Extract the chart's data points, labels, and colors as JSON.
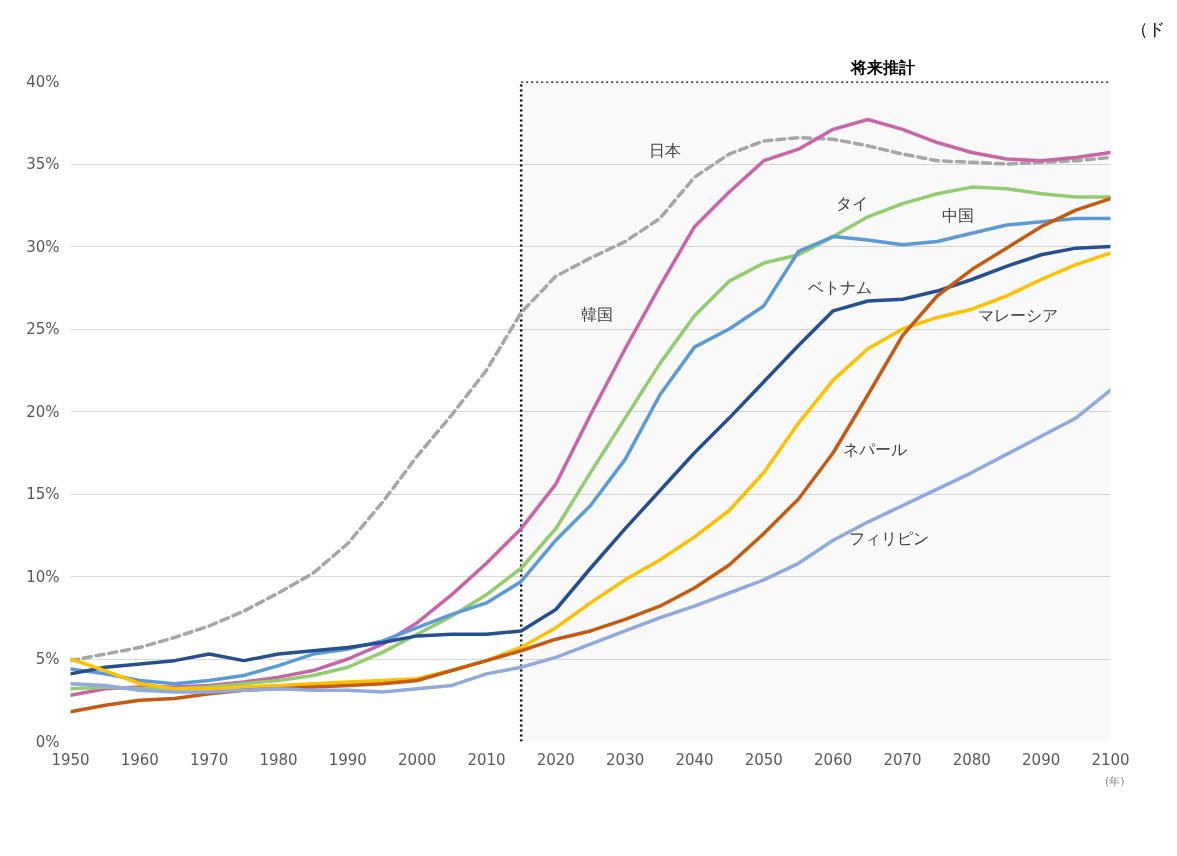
{
  "chart_data": {
    "type": "line",
    "x": [
      1950,
      1955,
      1960,
      1965,
      1970,
      1975,
      1980,
      1985,
      1990,
      1995,
      2000,
      2005,
      2010,
      2015,
      2020,
      2025,
      2030,
      2035,
      2040,
      2045,
      2050,
      2055,
      2060,
      2065,
      2070,
      2075,
      2080,
      2085,
      2090,
      2095,
      2100
    ],
    "xlabel": "(年)",
    "xlim": [
      1950,
      2100
    ],
    "xticks": [
      1950,
      1960,
      1970,
      1980,
      1990,
      2000,
      2010,
      2020,
      2030,
      2040,
      2050,
      2060,
      2070,
      2080,
      2090,
      2100
    ],
    "ylim": [
      0,
      40
    ],
    "yticks": [
      {
        "value": 0,
        "label": "0%"
      },
      {
        "value": 5,
        "label": "5%"
      },
      {
        "value": 10,
        "label": "10%"
      },
      {
        "value": 15,
        "label": "15%"
      },
      {
        "value": 20,
        "label": "20%"
      },
      {
        "value": 25,
        "label": "25%"
      },
      {
        "value": 30,
        "label": "30%"
      },
      {
        "value": 35,
        "label": "35%"
      },
      {
        "value": 40,
        "label": "40%"
      }
    ],
    "grid": "y",
    "marker": "none",
    "series": [
      {
        "name": "日本",
        "color": "#a6a6a6",
        "line_style": "dashed",
        "values": [
          4.9,
          5.3,
          5.7,
          6.3,
          7.0,
          7.9,
          9.0,
          10.2,
          12.0,
          14.5,
          17.3,
          19.8,
          22.5,
          26.0,
          28.2,
          29.3,
          30.3,
          31.7,
          34.2,
          35.6,
          36.4,
          36.6,
          36.5,
          36.1,
          35.6,
          35.2,
          35.1,
          35.0,
          35.1,
          35.2,
          35.4
        ]
      },
      {
        "name": "韓国",
        "color": "#c964a8",
        "values": [
          2.8,
          3.2,
          3.3,
          3.3,
          3.4,
          3.6,
          3.9,
          4.3,
          5.0,
          5.9,
          7.2,
          8.9,
          10.8,
          12.9,
          15.6,
          19.8,
          23.8,
          27.6,
          31.2,
          33.3,
          35.2,
          35.9,
          37.1,
          37.7,
          37.1,
          36.3,
          35.7,
          35.3,
          35.2,
          35.4,
          35.7
        ]
      },
      {
        "name": "タイ",
        "color": "#92cc6e",
        "values": [
          3.2,
          3.3,
          3.2,
          3.2,
          3.3,
          3.5,
          3.7,
          4.0,
          4.5,
          5.4,
          6.5,
          7.6,
          8.9,
          10.5,
          12.9,
          16.3,
          19.6,
          22.9,
          25.8,
          27.9,
          29.0,
          29.5,
          30.6,
          31.8,
          32.6,
          33.2,
          33.6,
          33.5,
          33.2,
          33.0,
          33.0
        ]
      },
      {
        "name": "中国",
        "color": "#5b9bd5",
        "values": [
          4.4,
          4.1,
          3.7,
          3.5,
          3.7,
          4.0,
          4.6,
          5.3,
          5.6,
          6.1,
          6.9,
          7.7,
          8.4,
          9.7,
          12.2,
          14.3,
          17.1,
          21.0,
          23.9,
          25.0,
          26.4,
          29.7,
          30.6,
          30.4,
          30.1,
          30.3,
          30.8,
          31.3,
          31.5,
          31.7,
          31.7
        ]
      },
      {
        "name": "ベトナム",
        "color": "#264f8f",
        "values": [
          4.1,
          4.5,
          4.7,
          4.9,
          5.3,
          4.9,
          5.3,
          5.5,
          5.7,
          6.0,
          6.4,
          6.5,
          6.5,
          6.7,
          8.0,
          10.5,
          12.9,
          15.2,
          17.5,
          19.6,
          21.8,
          24.0,
          26.1,
          26.7,
          26.8,
          27.3,
          28.0,
          28.8,
          29.5,
          29.9,
          30.0
        ]
      },
      {
        "name": "マレーシア",
        "color": "#ffc000",
        "values": [
          5.0,
          4.3,
          3.5,
          3.2,
          3.2,
          3.3,
          3.4,
          3.5,
          3.6,
          3.7,
          3.8,
          4.3,
          4.9,
          5.7,
          6.9,
          8.4,
          9.8,
          11.0,
          12.4,
          14.0,
          16.3,
          19.3,
          21.9,
          23.8,
          25.0,
          25.7,
          26.2,
          27.0,
          28.0,
          28.9,
          29.6
        ]
      },
      {
        "name": "ネパール",
        "color": "#c55a11",
        "values": [
          1.8,
          2.2,
          2.5,
          2.6,
          2.9,
          3.1,
          3.2,
          3.3,
          3.4,
          3.5,
          3.7,
          4.3,
          4.9,
          5.5,
          6.2,
          6.7,
          7.4,
          8.2,
          9.3,
          10.7,
          12.6,
          14.7,
          17.5,
          21.0,
          24.6,
          27.0,
          28.6,
          29.9,
          31.2,
          32.2,
          32.9
        ]
      },
      {
        "name": "フィリピン",
        "color": "#8faadc",
        "values": [
          3.5,
          3.4,
          3.1,
          3.0,
          3.0,
          3.1,
          3.2,
          3.1,
          3.1,
          3.0,
          3.2,
          3.4,
          4.1,
          4.5,
          5.1,
          5.9,
          6.7,
          7.5,
          8.2,
          9.0,
          9.8,
          10.8,
          12.2,
          13.3,
          14.3,
          15.3,
          16.3,
          17.4,
          18.5,
          19.6,
          21.3
        ]
      }
    ],
    "bands": [
      {
        "axis": "x",
        "from": 2015,
        "to": 2100,
        "label": "将来推計",
        "color": "#000000"
      }
    ],
    "annotations": [
      "（ド"
    ]
  }
}
